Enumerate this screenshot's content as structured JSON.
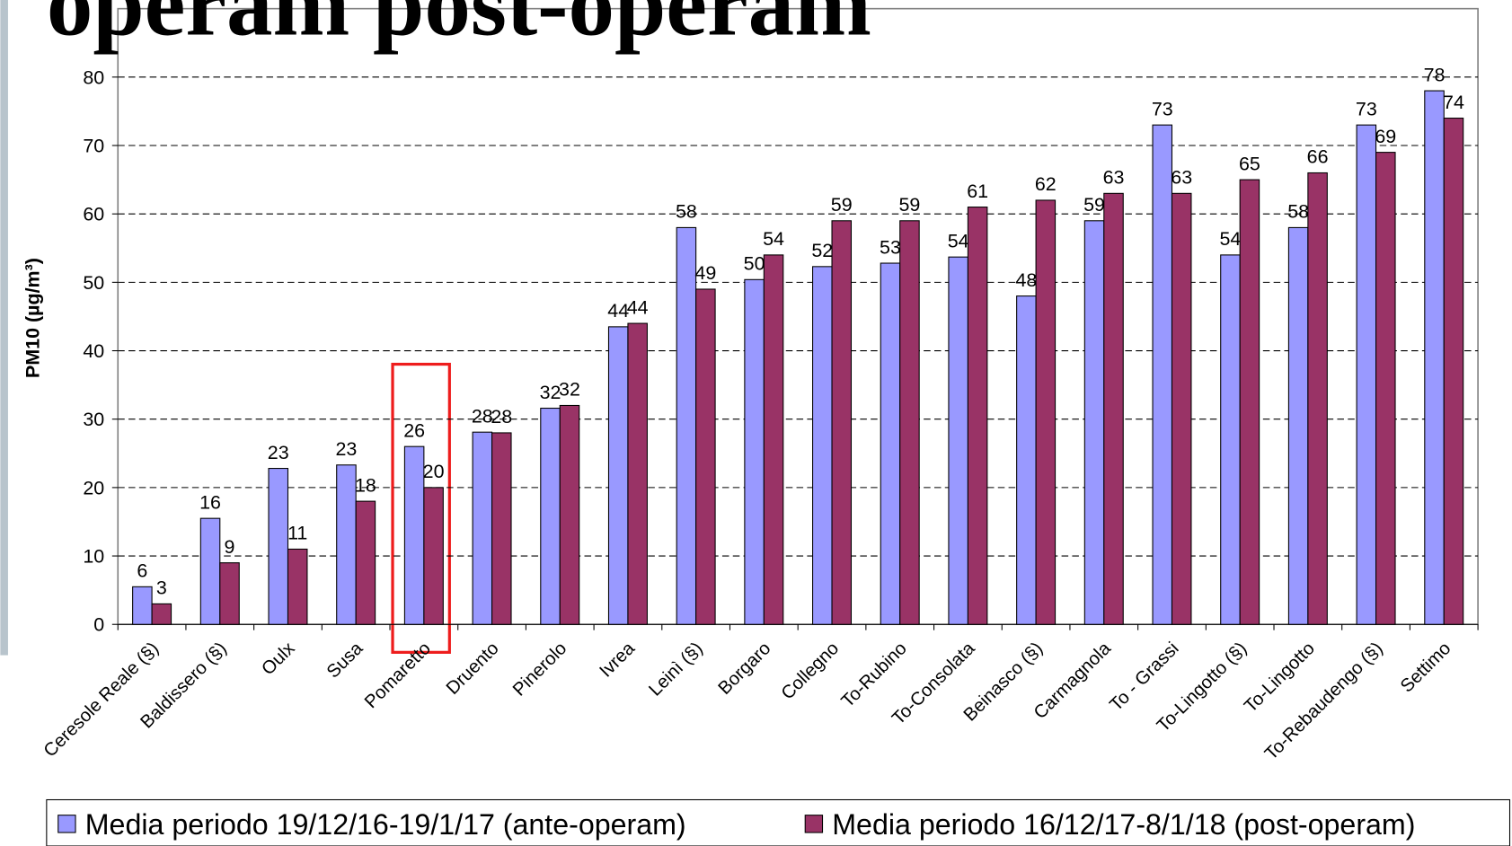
{
  "chart_data": {
    "type": "bar",
    "title": "operam post-operam",
    "y_label": "PM10 (µg/m³)",
    "categories": [
      "Ceresole Reale (§)",
      "Baldissero (§)",
      "Oulx",
      "Susa",
      "Pomaretto",
      "Druento",
      "Pinerolo",
      "Ivrea",
      "Leinì (§)",
      "Borgaro",
      "Collegno",
      "To-Rubino",
      "To-Consolata",
      "Beinasco (§)",
      "Carmagnola",
      "To - Grassi",
      "To-Lingotto (§)",
      "To-Lingotto",
      "To-Rebaudengo (§)",
      "Settimo"
    ],
    "series": [
      {
        "name": "Media periodo 19/12/16-19/1/17 (ante-operam)",
        "color": "#9999ff",
        "values": [
          5.5,
          15.5,
          22.8,
          23.3,
          26,
          28.1,
          31.6,
          43.5,
          58,
          50.4,
          52.3,
          52.8,
          53.7,
          48,
          59,
          73,
          54,
          58,
          73,
          78
        ],
        "value_labels": [
          "6",
          "16",
          "23",
          "23",
          "26",
          "28",
          "32",
          "44",
          "58",
          "50",
          "52",
          "53",
          "54",
          "48",
          "59",
          "73",
          "54",
          "58",
          "73",
          "78"
        ]
      },
      {
        "name": "Media periodo 16/12/17-8/1/18 (post-operam)",
        "color": "#993366",
        "values": [
          3,
          9,
          11,
          18,
          20,
          28,
          32,
          44,
          49,
          54,
          59,
          59,
          61,
          62,
          63,
          63,
          65,
          66,
          69,
          74
        ]
      }
    ],
    "ylim": [
      0,
      90
    ],
    "yticks": [
      0,
      10,
      20,
      30,
      40,
      50,
      60,
      70,
      80
    ],
    "grid": true,
    "legend": "bottom"
  }
}
